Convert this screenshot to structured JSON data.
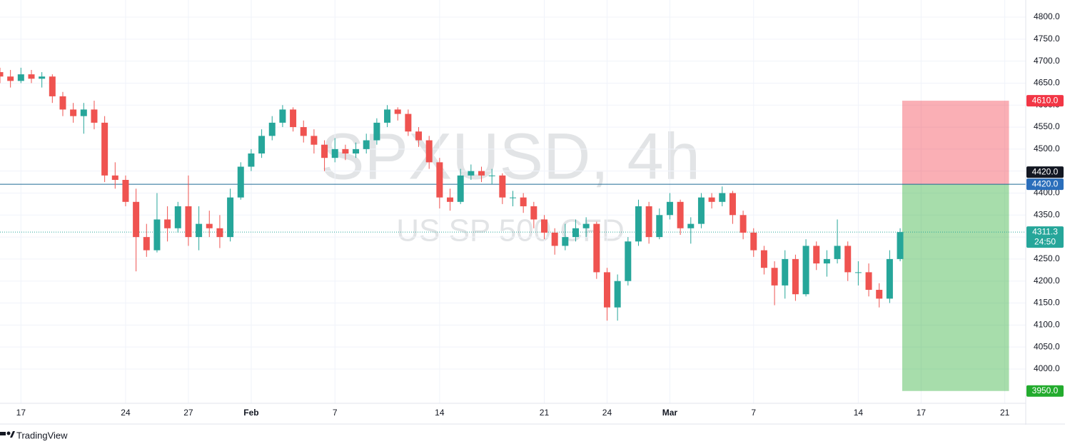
{
  "chart_data": {
    "type": "candlestick",
    "watermark": "SPXUSD, 4h",
    "watermark_sub": "US SP 500 CFD",
    "branding": "TradingView",
    "up_color": "#26a69a",
    "down_color": "#ef5350",
    "grid": true,
    "xlim": [
      -1.0,
      48.0
    ],
    "ylim": [
      3922,
      4839
    ],
    "xticks": [
      {
        "value": 0,
        "label": "17"
      },
      {
        "value": 5,
        "label": "24"
      },
      {
        "value": 8,
        "label": "27"
      },
      {
        "value": 11,
        "label": "Feb"
      },
      {
        "value": 15,
        "label": "7"
      },
      {
        "value": 20,
        "label": "14"
      },
      {
        "value": 25,
        "label": "21"
      },
      {
        "value": 28,
        "label": "24"
      },
      {
        "value": 31,
        "label": "Mar"
      },
      {
        "value": 35,
        "label": "7"
      },
      {
        "value": 40,
        "label": "14"
      },
      {
        "value": 43,
        "label": "17"
      },
      {
        "value": 47,
        "label": "21"
      }
    ],
    "yticks": [
      {
        "value": 4000,
        "label": "4000.0"
      },
      {
        "value": 4050,
        "label": "4050.0"
      },
      {
        "value": 4100,
        "label": "4100.0"
      },
      {
        "value": 4150,
        "label": "4150.0"
      },
      {
        "value": 4200,
        "label": "4200.0"
      },
      {
        "value": 4250,
        "label": "4250.0"
      },
      {
        "value": 4300,
        "label": "4300.0"
      },
      {
        "value": 4350,
        "label": "4350.0"
      },
      {
        "value": 4400,
        "label": "4400.0"
      },
      {
        "value": 4450,
        "label": "4450.0"
      },
      {
        "value": 4500,
        "label": "4500.0"
      },
      {
        "value": 4550,
        "label": "4550.0"
      },
      {
        "value": 4600,
        "label": "4600.0"
      },
      {
        "value": 4650,
        "label": "4650.0"
      },
      {
        "value": 4700,
        "label": "4700.0"
      },
      {
        "value": 4750,
        "label": "4750.0"
      },
      {
        "value": 4800,
        "label": "4800.0"
      }
    ],
    "x": [
      -1,
      -0.5,
      0,
      0.5,
      1,
      1.5,
      2,
      2.5,
      3,
      3.5,
      4,
      4.5,
      5,
      5.5,
      6,
      6.5,
      7,
      7.5,
      8,
      8.5,
      9,
      9.5,
      10,
      10.5,
      11,
      11.5,
      12,
      12.5,
      13,
      13.5,
      14,
      14.5,
      15,
      15.5,
      16,
      16.5,
      17,
      17.5,
      18,
      18.5,
      19,
      19.5,
      20,
      20.5,
      21,
      21.5,
      22,
      22.5,
      23,
      23.5,
      24,
      24.5,
      25,
      25.5,
      26,
      26.5,
      27,
      27.5,
      28,
      28.5,
      29,
      29.5,
      30,
      30.5,
      31,
      31.5,
      32,
      32.5,
      33,
      33.5,
      34,
      34.5,
      35,
      35.5,
      36,
      36.5,
      37,
      37.5,
      38,
      38.5,
      39,
      39.5,
      40,
      40.5,
      41,
      41.5,
      42
    ],
    "open": [
      4675,
      4665,
      4655,
      4670,
      4660,
      4665,
      4620,
      4590,
      4575,
      4590,
      4560,
      4440,
      4430,
      4380,
      4300,
      4270,
      4340,
      4320,
      4370,
      4300,
      4330,
      4320,
      4300,
      4390,
      4460,
      4490,
      4530,
      4560,
      4590,
      4550,
      4530,
      4510,
      4480,
      4500,
      4490,
      4500,
      4520,
      4560,
      4590,
      4580,
      4540,
      4520,
      4470,
      4390,
      4380,
      4440,
      4450,
      4440,
      4440,
      4390,
      4390,
      4370,
      4340,
      4310,
      4280,
      4300,
      4320,
      4330,
      4220,
      4140,
      4200,
      4290,
      4370,
      4300,
      4350,
      4380,
      4320,
      4330,
      4390,
      4380,
      4400,
      4350,
      4310,
      4270,
      4230,
      4190,
      4250,
      4170,
      4280,
      4240,
      4250,
      4280,
      4220,
      4220,
      4180,
      4160,
      4250
    ],
    "high": [
      4685,
      4680,
      4685,
      4680,
      4675,
      4670,
      4630,
      4605,
      4605,
      4610,
      4575,
      4470,
      4440,
      4410,
      4330,
      4400,
      4370,
      4380,
      4440,
      4370,
      4360,
      4350,
      4410,
      4470,
      4500,
      4545,
      4575,
      4600,
      4595,
      4565,
      4545,
      4520,
      4525,
      4510,
      4515,
      4535,
      4570,
      4600,
      4595,
      4590,
      4550,
      4530,
      4480,
      4410,
      4455,
      4465,
      4460,
      4455,
      4445,
      4405,
      4400,
      4380,
      4350,
      4320,
      4330,
      4340,
      4345,
      4335,
      4230,
      4215,
      4300,
      4385,
      4380,
      4365,
      4400,
      4385,
      4345,
      4400,
      4400,
      4415,
      4405,
      4360,
      4320,
      4280,
      4245,
      4270,
      4260,
      4295,
      4290,
      4270,
      4340,
      4290,
      4245,
      4240,
      4195,
      4270,
      4320
    ],
    "low": [
      4650,
      4640,
      4650,
      4650,
      4640,
      4605,
      4575,
      4560,
      4535,
      4545,
      4425,
      4410,
      4370,
      4222,
      4255,
      4265,
      4290,
      4310,
      4280,
      4270,
      4300,
      4275,
      4290,
      4385,
      4450,
      4480,
      4520,
      4550,
      4540,
      4515,
      4490,
      4450,
      4470,
      4475,
      4480,
      4490,
      4510,
      4550,
      4565,
      4530,
      4505,
      4455,
      4365,
      4360,
      4375,
      4430,
      4425,
      4420,
      4375,
      4370,
      4355,
      4320,
      4295,
      4260,
      4270,
      4290,
      4300,
      4205,
      4110,
      4110,
      4190,
      4280,
      4285,
      4295,
      4340,
      4305,
      4285,
      4320,
      4365,
      4370,
      4330,
      4295,
      4255,
      4215,
      4145,
      4160,
      4155,
      4165,
      4225,
      4210,
      4240,
      4200,
      4190,
      4165,
      4140,
      4150,
      4245
    ],
    "close": [
      4665,
      4655,
      4670,
      4660,
      4665,
      4620,
      4590,
      4575,
      4590,
      4560,
      4440,
      4430,
      4380,
      4300,
      4270,
      4340,
      4320,
      4370,
      4300,
      4330,
      4320,
      4300,
      4390,
      4460,
      4490,
      4530,
      4560,
      4590,
      4550,
      4530,
      4510,
      4480,
      4500,
      4490,
      4500,
      4520,
      4560,
      4590,
      4580,
      4540,
      4520,
      4470,
      4390,
      4380,
      4440,
      4450,
      4440,
      4440,
      4390,
      4390,
      4370,
      4340,
      4310,
      4280,
      4300,
      4320,
      4330,
      4220,
      4140,
      4200,
      4290,
      4370,
      4300,
      4350,
      4380,
      4320,
      4330,
      4390,
      4380,
      4400,
      4350,
      4310,
      4270,
      4230,
      4190,
      4250,
      4170,
      4280,
      4240,
      4250,
      4280,
      4220,
      4220,
      4180,
      4160,
      4250,
      4311.3
    ],
    "hline": {
      "value": 4420,
      "label": "4420.0",
      "color": "#1f6a94"
    },
    "last_price": {
      "value": 4311.3,
      "countdown": "24:50"
    },
    "position": {
      "x_start": 42.1,
      "x_end": 47.2,
      "stop": {
        "value": 4610,
        "label": "4610.0"
      },
      "entry": {
        "value": 4420,
        "label": "4420.0"
      },
      "target": {
        "value": 3950,
        "label": "3950.0"
      },
      "loss_color": "#f23645",
      "profit_color": "#22ab2d"
    }
  }
}
